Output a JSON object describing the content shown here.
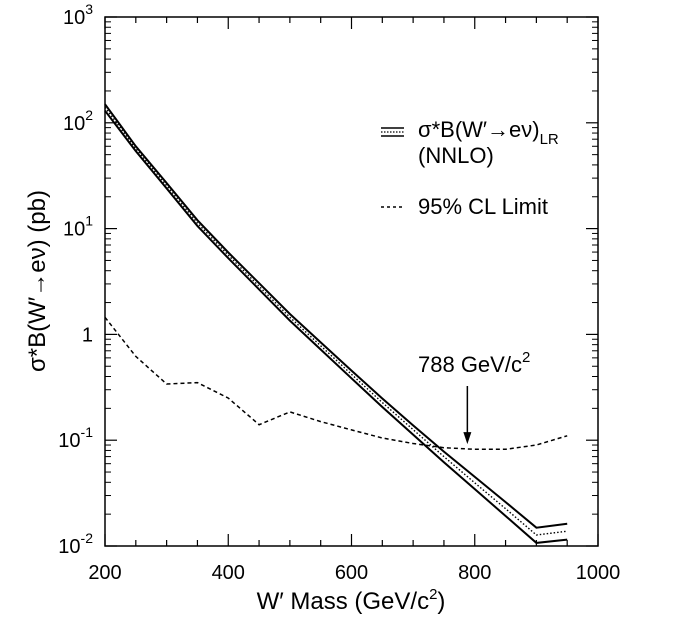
{
  "chart_data": {
    "type": "line",
    "xlabel": "W′ Mass (GeV/c",
    "xlabel_sup": "2",
    "xlabel_tail": ")",
    "ylabel": "σ*B(W′→eν) (pb)",
    "xlim": [
      200,
      1000
    ],
    "ylim": [
      0.01,
      1000
    ],
    "yscale": "log",
    "x_ticks": [
      200,
      400,
      600,
      800,
      1000
    ],
    "x_tick_labels": [
      "200",
      "400",
      "600",
      "800",
      "1000"
    ],
    "y_ticks": [
      0.01,
      0.1,
      1,
      10,
      100,
      1000
    ],
    "y_tick_labels": [
      {
        "base": "10",
        "exp": "-2"
      },
      {
        "base": "10",
        "exp": "-1"
      },
      {
        "base": "1",
        "exp": ""
      },
      {
        "base": "10",
        "exp": "1"
      },
      {
        "base": "10",
        "exp": "2"
      },
      {
        "base": "10",
        "exp": "3"
      }
    ],
    "grid": false,
    "legend_position": "top-right",
    "legend": {
      "theory_label": "σ*B(W′→eν)",
      "theory_sub": "LR",
      "theory_label2": "(NNLO)",
      "limit_label": "95% CL Limit"
    },
    "series": [
      {
        "name": "σ*B(W′→eν)LR (NNLO)",
        "style": "band",
        "x": [
          200,
          250,
          300,
          350,
          400,
          450,
          500,
          550,
          600,
          650,
          700,
          750,
          800,
          850,
          900,
          950
        ],
        "central": [
          140,
          57,
          25.5,
          11.3,
          5.6,
          2.85,
          1.45,
          0.78,
          0.42,
          0.227,
          0.126,
          0.07,
          0.0395,
          0.0225,
          0.0127,
          0.0138
        ],
        "upper": [
          150,
          60,
          27,
          12.0,
          5.95,
          3.05,
          1.56,
          0.84,
          0.455,
          0.248,
          0.138,
          0.078,
          0.045,
          0.026,
          0.0149,
          0.0162
        ],
        "lower": [
          130,
          54,
          24,
          10.6,
          5.25,
          2.66,
          1.35,
          0.72,
          0.385,
          0.206,
          0.113,
          0.062,
          0.0345,
          0.0192,
          0.0107,
          0.0115
        ]
      },
      {
        "name": "95% CL Limit",
        "style": "dashed",
        "x": [
          200,
          250,
          300,
          350,
          400,
          450,
          500,
          550,
          600,
          650,
          700,
          750,
          800,
          850,
          900,
          950
        ],
        "values": [
          1.45,
          0.62,
          0.34,
          0.35,
          0.25,
          0.14,
          0.185,
          0.15,
          0.125,
          0.105,
          0.093,
          0.085,
          0.082,
          0.082,
          0.09,
          0.11
        ]
      }
    ],
    "annotation": {
      "text": "788 GeV/c",
      "text_sup": "2",
      "x": 788,
      "y": 0.088
    }
  }
}
